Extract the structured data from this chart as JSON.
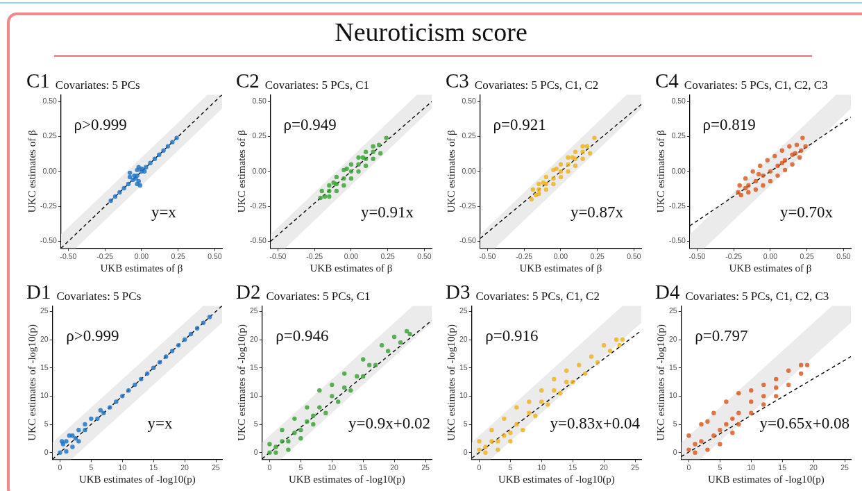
{
  "chart_data": [
    {
      "type": "scatter",
      "title": "C1",
      "subtitle": "Covariates: 5 PCs",
      "xlabel": "UKB estimates of β",
      "ylabel": "UKC estimates of β",
      "xlim": [
        -0.55,
        0.55
      ],
      "ylim": [
        -0.55,
        0.55
      ],
      "xticks": [
        {
          "value": -0.5,
          "label": "-0.50"
        },
        {
          "value": -0.25,
          "label": "-0.25"
        },
        {
          "value": 0,
          "label": "0.00"
        },
        {
          "value": 0.25,
          "label": "0.25"
        },
        {
          "value": 0.5,
          "label": "0.50"
        }
      ],
      "yticks": [
        {
          "value": -0.5,
          "label": "-0.50"
        },
        {
          "value": -0.25,
          "label": "-0.25"
        },
        {
          "value": 0,
          "label": "0.00"
        },
        {
          "value": 0.25,
          "label": "0.25"
        },
        {
          "value": 0.5,
          "label": "0.50"
        }
      ],
      "grid": false,
      "legend": false,
      "annotations": [
        "Neuroticism score",
        "ρ>0.999",
        "y=x"
      ],
      "series": [
        {
          "type": "area",
          "color": "#ebebeb",
          "x": [
            -0.55,
            -0.45,
            0.45,
            0.55
          ],
          "values": [
            null,
            null,
            null,
            null
          ],
          "lower": [
            -0.55,
            -0.55,
            0.35,
            0.45
          ],
          "upper": [
            -0.45,
            -0.35,
            0.55,
            0.55
          ]
        },
        {
          "color": "#1a6fc4",
          "marker": "circle",
          "x": [
            -0.21,
            -0.18,
            -0.15,
            -0.12,
            -0.09,
            -0.06,
            -0.03,
            0,
            0.03,
            0.06,
            0.09,
            0.12,
            0.15,
            0.18,
            0.21,
            0.24,
            -0.05,
            -0.08,
            -0.04,
            -0.03,
            -0.02,
            -0.01,
            0,
            -0.08,
            0.02,
            -0.03,
            -0.02
          ],
          "values": [
            -0.21,
            -0.18,
            -0.15,
            -0.12,
            -0.09,
            -0.06,
            -0.03,
            0,
            0.03,
            0.06,
            0.09,
            0.12,
            0.15,
            0.18,
            0.21,
            0.24,
            -0.03,
            -0.01,
            -0.05,
            0.01,
            -0.07,
            -0.1,
            0.02,
            -0.04,
            0,
            -0.09,
            0.03
          ]
        },
        {
          "type": "line",
          "color": "#000000",
          "line_style": "dashed",
          "x": [
            -0.55,
            0.55
          ],
          "values": [
            -0.55,
            0.55
          ]
        }
      ]
    },
    {
      "type": "scatter",
      "title": "C2",
      "subtitle": "Covariates: 5 PCs, C1",
      "xlabel": "UKB estimates of β",
      "ylabel": "UKC estimates of β",
      "xlim": [
        -0.55,
        0.55
      ],
      "ylim": [
        -0.55,
        0.55
      ],
      "xticks": [
        {
          "value": -0.5,
          "label": "-0.50"
        },
        {
          "value": -0.25,
          "label": "-0.25"
        },
        {
          "value": 0,
          "label": "0.00"
        },
        {
          "value": 0.25,
          "label": "0.25"
        },
        {
          "value": 0.5,
          "label": "0.50"
        }
      ],
      "yticks": [
        {
          "value": -0.5,
          "label": "-0.50"
        },
        {
          "value": -0.25,
          "label": "-0.25"
        },
        {
          "value": 0,
          "label": "0.00"
        },
        {
          "value": 0.25,
          "label": "0.25"
        },
        {
          "value": 0.5,
          "label": "0.50"
        }
      ],
      "grid": false,
      "legend": false,
      "annotations": [
        "ρ=0.949",
        "y=0.91x"
      ],
      "series": [
        {
          "type": "area",
          "color": "#ebebeb",
          "x": [
            -0.55,
            -0.45,
            0.45,
            0.55
          ],
          "values": [
            null,
            null,
            null,
            null
          ],
          "lower": [
            -0.55,
            -0.55,
            0.35,
            0.45
          ],
          "upper": [
            -0.45,
            -0.35,
            0.55,
            0.55
          ]
        },
        {
          "color": "#33a02c",
          "marker": "circle",
          "x": [
            -0.21,
            -0.2,
            -0.18,
            -0.15,
            -0.15,
            -0.1,
            -0.1,
            -0.05,
            -0.05,
            0,
            0,
            0.05,
            0.05,
            0.1,
            0.1,
            0.15,
            0.15,
            0.19,
            0.2,
            0.24,
            0,
            -0.1,
            0.1,
            -0.15,
            -0.05,
            0.05,
            0.15,
            -0.12,
            -0.03,
            0.08
          ],
          "values": [
            -0.19,
            -0.14,
            -0.18,
            -0.1,
            -0.18,
            -0.04,
            -0.14,
            0.01,
            -0.1,
            0.05,
            -0.05,
            0.1,
            0,
            0.14,
            0.04,
            0.18,
            0.09,
            0.19,
            0.13,
            0.24,
            0,
            -0.09,
            0.09,
            -0.14,
            -0.05,
            0.05,
            0.14,
            -0.08,
            0.02,
            0.1
          ]
        },
        {
          "type": "line",
          "color": "#000000",
          "line_style": "dashed",
          "x": [
            -0.55,
            0.55
          ],
          "values": [
            -0.5,
            0.5
          ]
        }
      ]
    },
    {
      "type": "scatter",
      "title": "C3",
      "subtitle": "Covariates: 5 PCs, C1, C2",
      "xlabel": "UKB estimates of β",
      "ylabel": "UKC estimates of β",
      "xlim": [
        -0.55,
        0.55
      ],
      "ylim": [
        -0.55,
        0.55
      ],
      "xticks": [
        {
          "value": -0.5,
          "label": "-0.50"
        },
        {
          "value": -0.25,
          "label": "-0.25"
        },
        {
          "value": 0,
          "label": "0.00"
        },
        {
          "value": 0.25,
          "label": "0.25"
        },
        {
          "value": 0.5,
          "label": "0.50"
        }
      ],
      "yticks": [
        {
          "value": -0.5,
          "label": "-0.50"
        },
        {
          "value": -0.25,
          "label": "-0.25"
        },
        {
          "value": 0,
          "label": "0.00"
        },
        {
          "value": 0.25,
          "label": "0.25"
        },
        {
          "value": 0.5,
          "label": "0.50"
        }
      ],
      "grid": false,
      "legend": false,
      "annotations": [
        "ρ=0.921",
        "y=0.87x"
      ],
      "series": [
        {
          "type": "area",
          "color": "#ebebeb",
          "x": [
            -0.55,
            -0.45,
            0.45,
            0.55
          ],
          "values": [
            null,
            null,
            null,
            null
          ],
          "lower": [
            -0.55,
            -0.55,
            0.35,
            0.45
          ],
          "upper": [
            -0.45,
            -0.35,
            0.55,
            0.55
          ]
        },
        {
          "color": "#eeb11a",
          "marker": "circle",
          "x": [
            -0.2,
            -0.19,
            -0.17,
            -0.15,
            -0.15,
            -0.1,
            -0.1,
            -0.05,
            -0.05,
            0,
            0,
            0.05,
            0.05,
            0.1,
            0.1,
            0.15,
            0.15,
            0.18,
            0.2,
            0.23,
            0,
            -0.1,
            0.1,
            -0.15,
            -0.05,
            0.05,
            0.15,
            -0.12,
            -0.03,
            0.08
          ],
          "values": [
            -0.2,
            -0.13,
            -0.17,
            -0.09,
            -0.16,
            -0.04,
            -0.13,
            0.01,
            -0.09,
            0.05,
            -0.04,
            0.1,
            0,
            0.14,
            0.04,
            0.18,
            0.09,
            0.18,
            0.13,
            0.24,
            0,
            -0.09,
            0.09,
            -0.13,
            -0.05,
            0.05,
            0.14,
            -0.08,
            0.02,
            0.1
          ]
        },
        {
          "type": "line",
          "color": "#000000",
          "line_style": "dashed",
          "x": [
            -0.55,
            0.55
          ],
          "values": [
            -0.48,
            0.48
          ]
        }
      ]
    },
    {
      "type": "scatter",
      "title": "C4",
      "subtitle": "Covariates: 5 PCs, C1, C2, C3",
      "xlabel": "UKB estimates of β",
      "ylabel": "UKC estimates of β",
      "xlim": [
        -0.55,
        0.55
      ],
      "ylim": [
        -0.55,
        0.55
      ],
      "xticks": [
        {
          "value": -0.5,
          "label": "-0.50"
        },
        {
          "value": -0.25,
          "label": "-0.25"
        },
        {
          "value": 0,
          "label": "0.00"
        },
        {
          "value": 0.25,
          "label": "0.25"
        },
        {
          "value": 0.5,
          "label": "0.50"
        }
      ],
      "yticks": [
        {
          "value": -0.5,
          "label": "-0.50"
        },
        {
          "value": -0.25,
          "label": "-0.25"
        },
        {
          "value": 0,
          "label": "0.00"
        },
        {
          "value": 0.25,
          "label": "0.25"
        },
        {
          "value": 0.5,
          "label": "0.50"
        }
      ],
      "grid": false,
      "legend": false,
      "annotations": [
        "ρ=0.819",
        "y=0.70x"
      ],
      "series": [
        {
          "type": "area",
          "color": "#ebebeb",
          "x": [
            -0.55,
            -0.45,
            0.45,
            0.55
          ],
          "values": [
            null,
            null,
            null,
            null
          ],
          "lower": [
            -0.55,
            -0.55,
            0.35,
            0.45
          ],
          "upper": [
            -0.45,
            -0.35,
            0.55,
            0.55
          ]
        },
        {
          "color": "#d95418",
          "marker": "circle",
          "x": [
            -0.22,
            -0.21,
            -0.2,
            -0.17,
            -0.15,
            -0.12,
            -0.1,
            -0.07,
            -0.05,
            -0.02,
            0,
            0.03,
            0.05,
            0.08,
            0.1,
            0.13,
            0.15,
            0.18,
            0.2,
            0.21,
            0.22,
            0.24,
            0,
            -0.1,
            0.1,
            -0.15,
            -0.05,
            0.05,
            0.15,
            -0.17,
            0.17,
            -0.08,
            0.08
          ],
          "values": [
            -0.15,
            -0.1,
            -0.17,
            -0.05,
            -0.15,
            0,
            -0.13,
            0.04,
            -0.1,
            0.08,
            -0.07,
            0.11,
            -0.03,
            0.15,
            0.01,
            0.18,
            0.05,
            0.19,
            0.1,
            0.15,
            0.24,
            0.18,
            0,
            -0.07,
            0.08,
            -0.1,
            -0.03,
            0.04,
            0.12,
            -0.12,
            0.13,
            -0.02,
            0.06
          ]
        },
        {
          "type": "line",
          "color": "#000000",
          "line_style": "dashed",
          "x": [
            -0.55,
            0.55
          ],
          "values": [
            -0.39,
            0.39
          ]
        }
      ]
    },
    {
      "type": "scatter",
      "title": "D1",
      "subtitle": "Covariates: 5 PCs",
      "xlabel": "UKB estimates of -log10(p)",
      "ylabel": "UKC estimates of -log10(p)",
      "xlim": [
        -1.2,
        26
      ],
      "ylim": [
        -1.2,
        26
      ],
      "xticks": [
        0,
        5,
        10,
        15,
        20,
        25
      ],
      "yticks": [
        0,
        5,
        10,
        15,
        20,
        25
      ],
      "grid": false,
      "legend": false,
      "annotations": [
        "ρ>0.999",
        "y=x"
      ],
      "series": [
        {
          "type": "area",
          "color": "#ebebeb",
          "x": [
            -1.2,
            1.8,
            23,
            26
          ],
          "values": [
            null,
            null,
            null,
            null
          ],
          "lower": [
            -1.2,
            -1.2,
            20,
            23
          ],
          "upper": [
            1.8,
            4.8,
            26,
            26
          ]
        },
        {
          "color": "#1a6fc4",
          "marker": "circle",
          "x": [
            0,
            0.5,
            1,
            1.5,
            2,
            2,
            3,
            3,
            4,
            5,
            6.5,
            1,
            0.3,
            2.5,
            4,
            6,
            8,
            10,
            12,
            14,
            16,
            18,
            20,
            22,
            24,
            7,
            9,
            11,
            13,
            15,
            17,
            19,
            21,
            23
          ],
          "values": [
            0,
            1.5,
            2,
            3,
            3,
            1,
            4,
            2,
            5,
            6,
            7.5,
            0.2,
            2,
            2.5,
            4,
            6,
            8,
            10,
            12,
            14,
            16,
            18,
            20,
            22,
            24,
            7,
            9,
            11,
            13,
            15,
            17,
            19,
            21,
            23
          ]
        },
        {
          "type": "line",
          "color": "#000000",
          "line_style": "dashed",
          "x": [
            -1.2,
            26
          ],
          "values": [
            -1.2,
            26
          ]
        }
      ]
    },
    {
      "type": "scatter",
      "title": "D2",
      "subtitle": "Covariates: 5 PCs, C1",
      "xlabel": "UKB estimates of -log10(p)",
      "ylabel": "UKC estimates of -log10(p)",
      "xlim": [
        -1.2,
        26
      ],
      "ylim": [
        -1.2,
        26
      ],
      "xticks": [
        0,
        5,
        10,
        15,
        20,
        25
      ],
      "yticks": [
        0,
        5,
        10,
        15,
        20,
        25
      ],
      "grid": false,
      "legend": false,
      "annotations": [
        "ρ=0.946",
        "y=0.9x+0.02"
      ],
      "series": [
        {
          "type": "area",
          "color": "#ebebeb",
          "x": [
            -1.2,
            1.8,
            23,
            26
          ],
          "values": [
            null,
            null,
            null,
            null
          ],
          "lower": [
            -1.2,
            -1.2,
            20,
            23
          ],
          "upper": [
            1.8,
            4.8,
            26,
            26
          ]
        },
        {
          "color": "#33a02c",
          "marker": "circle",
          "x": [
            0,
            2,
            4,
            6,
            8,
            10,
            12,
            15,
            18,
            20,
            22,
            1,
            3,
            5,
            7,
            9,
            11,
            13,
            15,
            17,
            19,
            21,
            22.5,
            2,
            4,
            6,
            8,
            10,
            12,
            14,
            16,
            0,
            1,
            3,
            5,
            7
          ],
          "values": [
            1.5,
            4,
            6,
            8,
            11,
            12,
            14,
            16.5,
            19,
            20.5,
            21.5,
            0,
            0.5,
            2.5,
            5,
            7,
            9,
            11,
            13.5,
            15.5,
            18,
            19.5,
            21,
            2,
            3.5,
            5.5,
            8,
            10,
            11.5,
            13.5,
            15.5,
            0,
            1,
            2,
            4,
            6.5
          ]
        },
        {
          "type": "line",
          "color": "#000000",
          "line_style": "dashed",
          "x": [
            -1.2,
            26
          ],
          "values": [
            -1.1,
            23.4
          ]
        }
      ]
    },
    {
      "type": "scatter",
      "title": "D3",
      "subtitle": "Covariates: 5 PCs, C1, C2",
      "xlabel": "UKB estimates of -log10(p)",
      "ylabel": "UKC estimates of -log10(p)",
      "xlim": [
        -1.2,
        26
      ],
      "ylim": [
        -1.2,
        26
      ],
      "xticks": [
        0,
        5,
        10,
        15,
        20,
        25
      ],
      "yticks": [
        0,
        5,
        10,
        15,
        20,
        25
      ],
      "grid": false,
      "legend": false,
      "annotations": [
        "ρ=0.916",
        "y=0.83x+0.04"
      ],
      "series": [
        {
          "type": "area",
          "color": "#ebebeb",
          "x": [
            -1.2,
            1.8,
            23,
            26
          ],
          "values": [
            null,
            null,
            null,
            null
          ],
          "lower": [
            -1.2,
            -1.2,
            20,
            23
          ],
          "upper": [
            1.8,
            4.8,
            26,
            26
          ]
        },
        {
          "color": "#eeb11a",
          "marker": "circle",
          "x": [
            0,
            2,
            4,
            6,
            8,
            10,
            12,
            14,
            16,
            18,
            20,
            22,
            23,
            1,
            3,
            5,
            7,
            9,
            11,
            13,
            15,
            17,
            19,
            21,
            22.5,
            2,
            4,
            6,
            8,
            10,
            12,
            14,
            0,
            1,
            3,
            5
          ],
          "values": [
            2,
            4,
            6,
            8,
            9,
            11,
            13,
            14.5,
            15.5,
            17,
            19,
            20,
            20,
            0,
            0.5,
            2,
            4,
            6.5,
            8.5,
            10.5,
            12.5,
            14,
            16,
            18,
            19,
            2,
            3,
            5,
            7,
            9,
            11,
            12.5,
            0.5,
            1,
            2,
            3.5
          ]
        },
        {
          "type": "line",
          "color": "#000000",
          "line_style": "dashed",
          "x": [
            -1.2,
            26
          ],
          "values": [
            -1,
            21.6
          ]
        }
      ]
    },
    {
      "type": "scatter",
      "title": "D4",
      "subtitle": "Covariates: 5 PCs, C1, C2, C3",
      "xlabel": "UKB estimates of -log10(p)",
      "ylabel": "UKC estimates of -log10(p)",
      "xlim": [
        -1.2,
        26
      ],
      "ylim": [
        -1.2,
        26
      ],
      "xticks": [
        0,
        5,
        10,
        15,
        20,
        25
      ],
      "yticks": [
        0,
        5,
        10,
        15,
        20,
        25
      ],
      "grid": false,
      "legend": false,
      "annotations": [
        "ρ=0.797",
        "y=0.65x+0.08"
      ],
      "series": [
        {
          "type": "area",
          "color": "#ebebeb",
          "x": [
            -1.2,
            1.8,
            23,
            26
          ],
          "values": [
            null,
            null,
            null,
            null
          ],
          "lower": [
            -1.2,
            -1.2,
            20,
            23
          ],
          "upper": [
            1.8,
            4.8,
            26,
            26
          ]
        },
        {
          "color": "#d95418",
          "marker": "circle",
          "x": [
            0,
            2,
            4,
            6,
            8,
            10,
            12,
            14,
            16,
            18,
            19,
            1,
            3,
            5,
            7,
            8,
            10,
            12,
            14,
            16,
            18,
            2,
            4,
            6,
            8,
            10,
            12,
            14,
            0,
            3,
            1,
            5,
            7
          ],
          "values": [
            3,
            5,
            7,
            9,
            10.5,
            11,
            12,
            13,
            14.5,
            15.5,
            15.5,
            0,
            0.5,
            1.5,
            3.5,
            5,
            7,
            8.5,
            10,
            12,
            14,
            2,
            3,
            5,
            7,
            9,
            10,
            11.5,
            0.5,
            5.5,
            1.5,
            4,
            6
          ]
        },
        {
          "type": "line",
          "color": "#000000",
          "line_style": "dashed",
          "x": [
            -1.2,
            26
          ],
          "values": [
            -0.7,
            17
          ]
        }
      ]
    }
  ]
}
